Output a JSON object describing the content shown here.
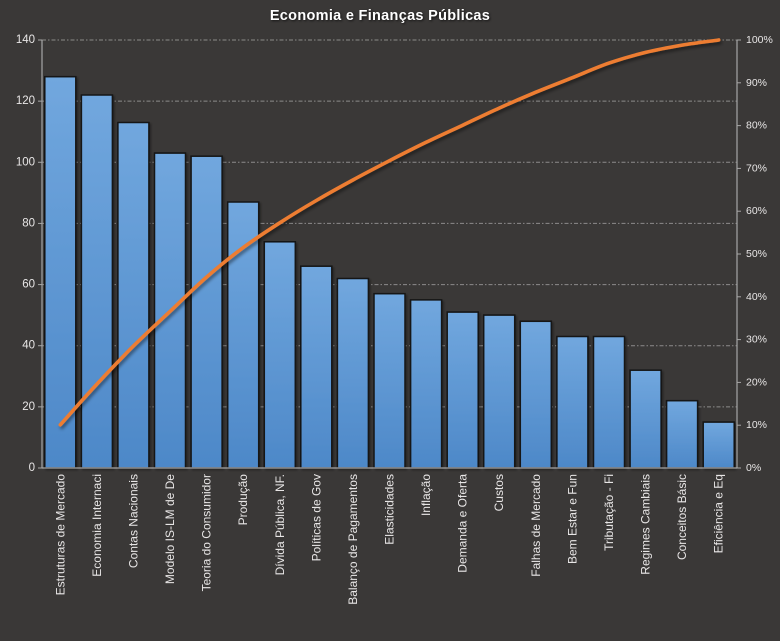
{
  "title": "Economia e Finanças Públicas",
  "chart_data": {
    "type": "bar",
    "subtype": "pareto",
    "title": "Economia e Finanças Públicas",
    "categories": [
      "Estruturas de Mercado",
      "Economia Internaci",
      "Contas Nacionais",
      "Modelo IS-LM de De",
      "Teoria do Consumidor",
      "Produção",
      "Dívida Pública, NF.",
      "Políticas de Gov",
      "Balanço de Pagamentos",
      "Elasticidades",
      "Inflação",
      "Demanda e Oferta",
      "Custos",
      "Falhas de Mercado",
      "Bem Estar e Fun",
      "Tributação - Fi",
      "Regimes Cambiais",
      "Conceitos Básic",
      "Eficiência e Eq"
    ],
    "series": [
      {
        "type": "bar",
        "axis": "left",
        "values": [
          128,
          122,
          113,
          103,
          102,
          87,
          74,
          66,
          62,
          57,
          55,
          51,
          50,
          48,
          43,
          43,
          32,
          22,
          15
        ]
      },
      {
        "type": "line",
        "axis": "right",
        "values_pct": [
          10.1,
          19.6,
          28.5,
          36.6,
          44.6,
          51.5,
          57.3,
          62.5,
          67.3,
          71.8,
          76.1,
          80.1,
          84.1,
          87.8,
          91.2,
          94.6,
          97.1,
          98.8,
          100.0
        ]
      }
    ],
    "left_axis": {
      "min": 0,
      "max": 140,
      "ticks": [
        "0",
        "20",
        "40",
        "60",
        "80",
        "100",
        "120",
        "140"
      ]
    },
    "right_axis": {
      "min": 0,
      "max": 100,
      "ticks": [
        "0%",
        "10%",
        "20%",
        "30%",
        "40%",
        "50%",
        "60%",
        "70%",
        "80%",
        "90%",
        "100%"
      ]
    },
    "grid": true,
    "legend": false
  },
  "colors": {
    "background": "#3a3837",
    "bar_gradient_top": "#71a7de",
    "bar_gradient_bottom": "#4d88c8",
    "bar_border": "#121212",
    "line": "#ed7d31",
    "grid": "#cfcfcf",
    "axis": "#a6a6a6",
    "tick_text": "#e8e6e6",
    "title_text": "#ffffff"
  }
}
